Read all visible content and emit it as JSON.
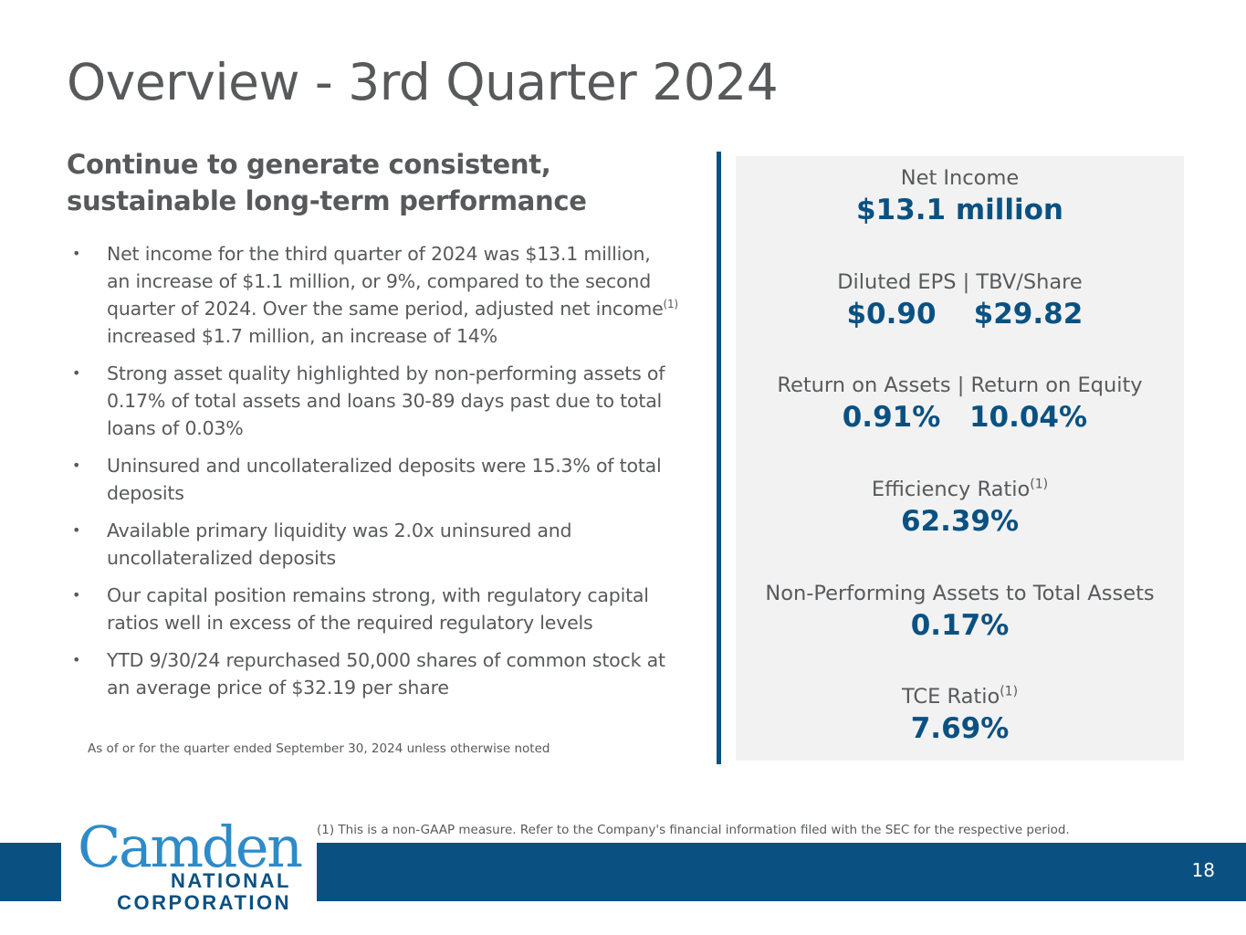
{
  "title": "Overview - 3rd Quarter 2024",
  "subtitle": "Continue to generate consistent, sustainable long-term performance",
  "bullets": [
    {
      "pre": "Net income for the third quarter of 2024 was $13.1 million, an increase of $1.1 million, or 9%, compared to the second quarter of 2024. Over the same period, adjusted net income",
      "sup": "(1)",
      "post": " increased $1.7 million, an increase of 14%"
    },
    {
      "pre": "Strong asset quality highlighted by non-performing assets of 0.17% of total assets and loans 30-89 days past due to total loans of 0.03%",
      "sup": "",
      "post": ""
    },
    {
      "pre": "Uninsured and uncollateralized deposits were 15.3% of total deposits",
      "sup": "",
      "post": ""
    },
    {
      "pre": "Available primary liquidity was 2.0x uninsured and uncollateralized deposits",
      "sup": "",
      "post": ""
    },
    {
      "pre": "Our capital position remains strong, with regulatory capital ratios well in excess of the required regulatory levels",
      "sup": "",
      "post": ""
    },
    {
      "pre": "YTD 9/30/24 repurchased 50,000 shares of common stock at an average price of $32.19 per share",
      "sup": "",
      "post": ""
    }
  ],
  "bullet_symbol": "•",
  "note": "As of or for the quarter ended September 30, 2024 unless otherwise noted",
  "metrics": {
    "net_income": {
      "label": "Net Income",
      "value": "$13.1 million"
    },
    "eps_tbv": {
      "label": "Diluted EPS | TBV/Share",
      "value1": "$0.90",
      "value2": "$29.82"
    },
    "roa_roe": {
      "label": "Return on Assets | Return on Equity",
      "value1": "0.91%",
      "value2": "10.04%"
    },
    "efficiency": {
      "label": "Efficiency Ratio",
      "sup": "(1)",
      "value": "62.39%"
    },
    "npa": {
      "label": "Non-Performing Assets to Total Assets",
      "value": "0.17%"
    },
    "tce": {
      "label": "TCE Ratio",
      "sup": "(1)",
      "value": "7.69%"
    }
  },
  "footnote": "(1) This is a non-GAAP measure. Refer to the Company's financial information filed with the SEC for the respective period.",
  "page_number": "18",
  "logo": {
    "line1": "Camden",
    "line2": "NATIONAL",
    "line3": "CORPORATION"
  },
  "colors": {
    "brand_blue": "#0a5182",
    "logo_light_blue": "#2d8bc9",
    "text_gray": "#58595b",
    "panel_bg": "#f2f2f2"
  }
}
